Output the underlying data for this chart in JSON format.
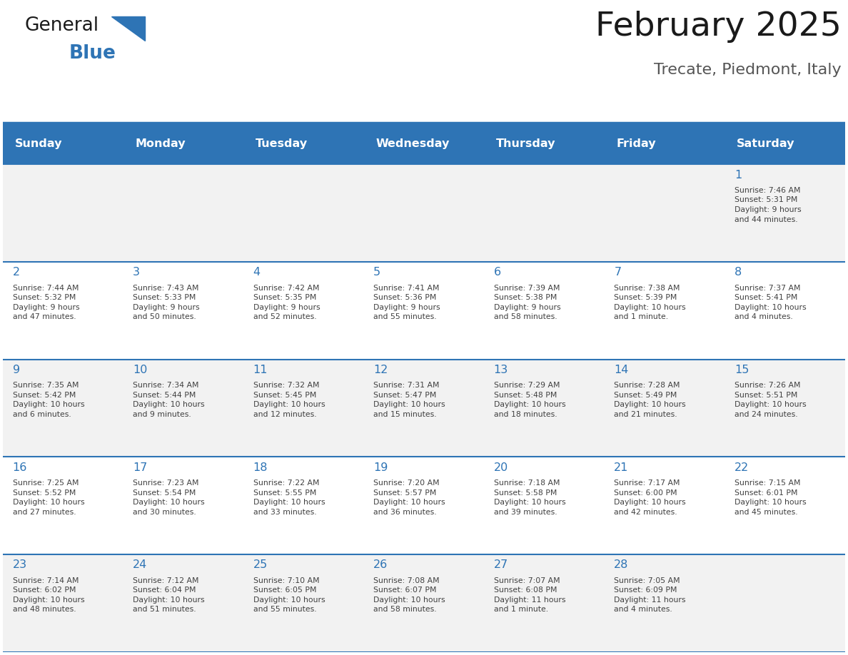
{
  "title": "February 2025",
  "subtitle": "Trecate, Piedmont, Italy",
  "days_of_week": [
    "Sunday",
    "Monday",
    "Tuesday",
    "Wednesday",
    "Thursday",
    "Friday",
    "Saturday"
  ],
  "header_bg": "#2E74B5",
  "header_text": "#FFFFFF",
  "cell_bg_light": "#FFFFFF",
  "cell_bg_dark": "#F2F2F2",
  "separator_color": "#2E74B5",
  "day_num_color": "#2E74B5",
  "cell_text_color": "#404040",
  "title_color": "#1A1A1A",
  "subtitle_color": "#555555",
  "weeks": [
    [
      {
        "day": null,
        "info": ""
      },
      {
        "day": null,
        "info": ""
      },
      {
        "day": null,
        "info": ""
      },
      {
        "day": null,
        "info": ""
      },
      {
        "day": null,
        "info": ""
      },
      {
        "day": null,
        "info": ""
      },
      {
        "day": 1,
        "info": "Sunrise: 7:46 AM\nSunset: 5:31 PM\nDaylight: 9 hours\nand 44 minutes."
      }
    ],
    [
      {
        "day": 2,
        "info": "Sunrise: 7:44 AM\nSunset: 5:32 PM\nDaylight: 9 hours\nand 47 minutes."
      },
      {
        "day": 3,
        "info": "Sunrise: 7:43 AM\nSunset: 5:33 PM\nDaylight: 9 hours\nand 50 minutes."
      },
      {
        "day": 4,
        "info": "Sunrise: 7:42 AM\nSunset: 5:35 PM\nDaylight: 9 hours\nand 52 minutes."
      },
      {
        "day": 5,
        "info": "Sunrise: 7:41 AM\nSunset: 5:36 PM\nDaylight: 9 hours\nand 55 minutes."
      },
      {
        "day": 6,
        "info": "Sunrise: 7:39 AM\nSunset: 5:38 PM\nDaylight: 9 hours\nand 58 minutes."
      },
      {
        "day": 7,
        "info": "Sunrise: 7:38 AM\nSunset: 5:39 PM\nDaylight: 10 hours\nand 1 minute."
      },
      {
        "day": 8,
        "info": "Sunrise: 7:37 AM\nSunset: 5:41 PM\nDaylight: 10 hours\nand 4 minutes."
      }
    ],
    [
      {
        "day": 9,
        "info": "Sunrise: 7:35 AM\nSunset: 5:42 PM\nDaylight: 10 hours\nand 6 minutes."
      },
      {
        "day": 10,
        "info": "Sunrise: 7:34 AM\nSunset: 5:44 PM\nDaylight: 10 hours\nand 9 minutes."
      },
      {
        "day": 11,
        "info": "Sunrise: 7:32 AM\nSunset: 5:45 PM\nDaylight: 10 hours\nand 12 minutes."
      },
      {
        "day": 12,
        "info": "Sunrise: 7:31 AM\nSunset: 5:47 PM\nDaylight: 10 hours\nand 15 minutes."
      },
      {
        "day": 13,
        "info": "Sunrise: 7:29 AM\nSunset: 5:48 PM\nDaylight: 10 hours\nand 18 minutes."
      },
      {
        "day": 14,
        "info": "Sunrise: 7:28 AM\nSunset: 5:49 PM\nDaylight: 10 hours\nand 21 minutes."
      },
      {
        "day": 15,
        "info": "Sunrise: 7:26 AM\nSunset: 5:51 PM\nDaylight: 10 hours\nand 24 minutes."
      }
    ],
    [
      {
        "day": 16,
        "info": "Sunrise: 7:25 AM\nSunset: 5:52 PM\nDaylight: 10 hours\nand 27 minutes."
      },
      {
        "day": 17,
        "info": "Sunrise: 7:23 AM\nSunset: 5:54 PM\nDaylight: 10 hours\nand 30 minutes."
      },
      {
        "day": 18,
        "info": "Sunrise: 7:22 AM\nSunset: 5:55 PM\nDaylight: 10 hours\nand 33 minutes."
      },
      {
        "day": 19,
        "info": "Sunrise: 7:20 AM\nSunset: 5:57 PM\nDaylight: 10 hours\nand 36 minutes."
      },
      {
        "day": 20,
        "info": "Sunrise: 7:18 AM\nSunset: 5:58 PM\nDaylight: 10 hours\nand 39 minutes."
      },
      {
        "day": 21,
        "info": "Sunrise: 7:17 AM\nSunset: 6:00 PM\nDaylight: 10 hours\nand 42 minutes."
      },
      {
        "day": 22,
        "info": "Sunrise: 7:15 AM\nSunset: 6:01 PM\nDaylight: 10 hours\nand 45 minutes."
      }
    ],
    [
      {
        "day": 23,
        "info": "Sunrise: 7:14 AM\nSunset: 6:02 PM\nDaylight: 10 hours\nand 48 minutes."
      },
      {
        "day": 24,
        "info": "Sunrise: 7:12 AM\nSunset: 6:04 PM\nDaylight: 10 hours\nand 51 minutes."
      },
      {
        "day": 25,
        "info": "Sunrise: 7:10 AM\nSunset: 6:05 PM\nDaylight: 10 hours\nand 55 minutes."
      },
      {
        "day": 26,
        "info": "Sunrise: 7:08 AM\nSunset: 6:07 PM\nDaylight: 10 hours\nand 58 minutes."
      },
      {
        "day": 27,
        "info": "Sunrise: 7:07 AM\nSunset: 6:08 PM\nDaylight: 11 hours\nand 1 minute."
      },
      {
        "day": 28,
        "info": "Sunrise: 7:05 AM\nSunset: 6:09 PM\nDaylight: 11 hours\nand 4 minutes."
      },
      {
        "day": null,
        "info": ""
      }
    ]
  ]
}
